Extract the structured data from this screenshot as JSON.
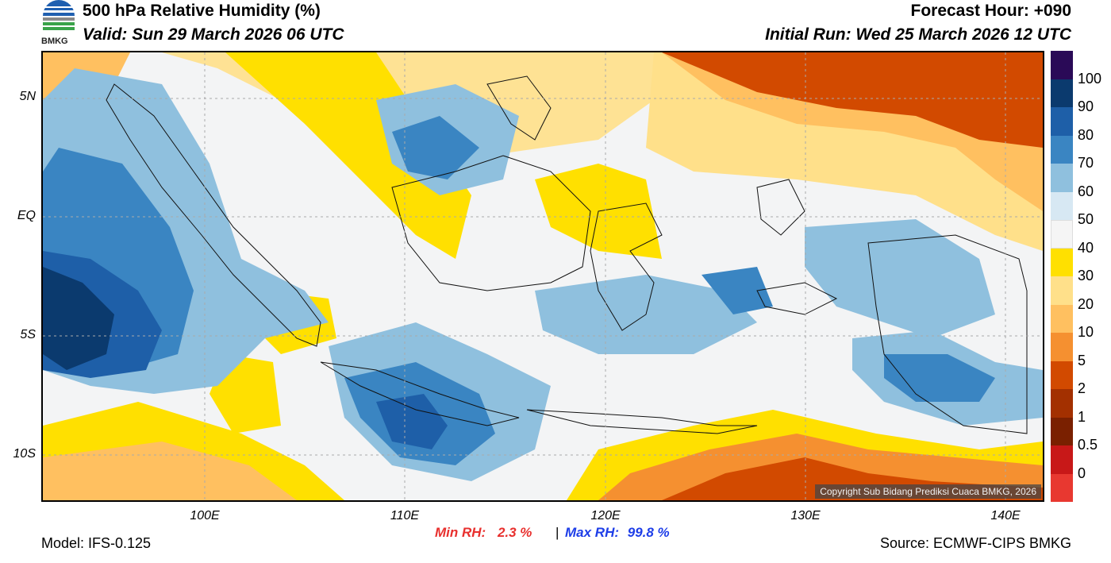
{
  "header": {
    "title": "500 hPa Relative Humidity (%)",
    "valid": "Valid: Sun 29 March 2026 06 UTC",
    "forecast_hour": "Forecast Hour: +090",
    "initial_run": "Initial Run: Wed 25 March 2026 12 UTC"
  },
  "logo": {
    "text": "BMKG",
    "icon": "bmkg-logo-icon"
  },
  "map": {
    "lat_labels": [
      "5N",
      "EQ",
      "5S",
      "10S"
    ],
    "lon_labels": [
      "100E",
      "110E",
      "120E",
      "130E",
      "140E"
    ],
    "copyright": "Copyright Sub Bidang Prediksi Cuaca BMKG, 2026"
  },
  "colorbar": {
    "labels": [
      "100",
      "90",
      "80",
      "70",
      "60",
      "50",
      "40",
      "30",
      "20",
      "10",
      "5",
      "2",
      "1",
      "0.5",
      "0"
    ],
    "colors": [
      "#2a0a57",
      "#0b3a6e",
      "#1e5fa8",
      "#3a85c2",
      "#8fc0de",
      "#d7e8f3",
      "#f5f5f5",
      "#ffe000",
      "#ffe08a",
      "#ffc060",
      "#f59030",
      "#d24a00",
      "#a33000",
      "#7a2000",
      "#c81818",
      "#e83830"
    ]
  },
  "stats": {
    "min_label": "Min RH:",
    "min_value": "2.3 %",
    "separator": "|",
    "max_label": "Max RH:",
    "max_value": "99.8 %",
    "min_color": "#e8302e",
    "max_color": "#1e3ee8"
  },
  "footer": {
    "model": "Model: IFS-0.125",
    "source": "Source: ECMWF-CIPS BMKG"
  }
}
